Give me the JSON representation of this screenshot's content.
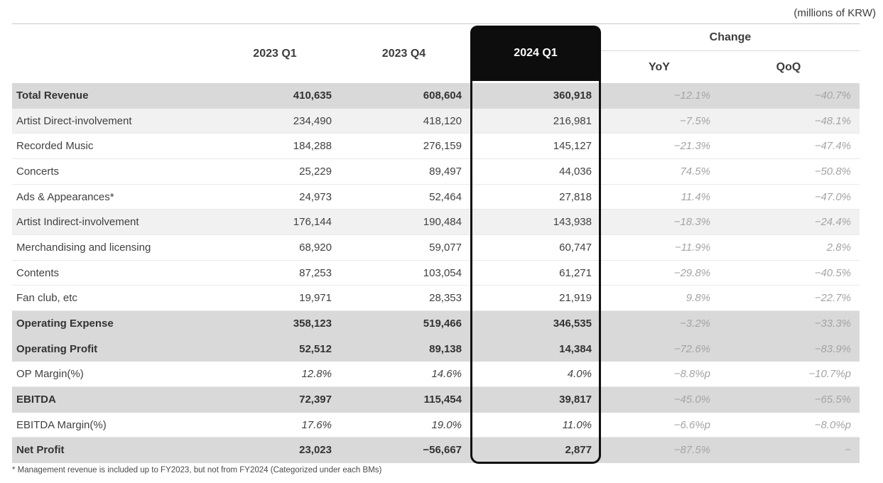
{
  "unit_note": "(millions of KRW)",
  "colors": {
    "highlight_box": "#0d0d0d",
    "band_dark": "#d9d9d9",
    "band_light": "#f1f1f1",
    "change_text": "#a4a4a4",
    "rule": "#c9c9c9"
  },
  "header": {
    "col_2023q1": "2023 Q1",
    "col_2023q4": "2023 Q4",
    "col_2024q1": "2024 Q1",
    "change_group": "Change",
    "col_yoy": "YoY",
    "col_qoq": "QoQ"
  },
  "rows": [
    {
      "label": "Total Revenue",
      "q1_2023": "410,635",
      "q4_2023": "608,604",
      "q1_2024": "360,918",
      "yoy": "−12.1%",
      "qoq": "−40.7%",
      "style": "total"
    },
    {
      "label": "Artist Direct-involvement",
      "q1_2023": "234,490",
      "q4_2023": "418,120",
      "q1_2024": "216,981",
      "yoy": "−7.5%",
      "qoq": "−48.1%",
      "style": "subhead"
    },
    {
      "label": "Recorded Music",
      "q1_2023": "184,288",
      "q4_2023": "276,159",
      "q1_2024": "145,127",
      "yoy": "−21.3%",
      "qoq": "−47.4%",
      "style": "sub"
    },
    {
      "label": "Concerts",
      "q1_2023": "25,229",
      "q4_2023": "89,497",
      "q1_2024": "44,036",
      "yoy": "74.5%",
      "qoq": "−50.8%",
      "style": "sub"
    },
    {
      "label": "Ads & Appearances*",
      "q1_2023": "24,973",
      "q4_2023": "52,464",
      "q1_2024": "27,818",
      "yoy": "11.4%",
      "qoq": "−47.0%",
      "style": "sub"
    },
    {
      "label": "Artist Indirect-involvement",
      "q1_2023": "176,144",
      "q4_2023": "190,484",
      "q1_2024": "143,938",
      "yoy": "−18.3%",
      "qoq": "−24.4%",
      "style": "subhead"
    },
    {
      "label": "Merchandising and licensing",
      "q1_2023": "68,920",
      "q4_2023": "59,077",
      "q1_2024": "60,747",
      "yoy": "−11.9%",
      "qoq": "2.8%",
      "style": "sub"
    },
    {
      "label": "Contents",
      "q1_2023": "87,253",
      "q4_2023": "103,054",
      "q1_2024": "61,271",
      "yoy": "−29.8%",
      "qoq": "−40.5%",
      "style": "sub"
    },
    {
      "label": "Fan club, etc",
      "q1_2023": "19,971",
      "q4_2023": "28,353",
      "q1_2024": "21,919",
      "yoy": "9.8%",
      "qoq": "−22.7%",
      "style": "sub"
    },
    {
      "label": "Operating Expense",
      "q1_2023": "358,123",
      "q4_2023": "519,466",
      "q1_2024": "346,535",
      "yoy": "−3.2%",
      "qoq": "−33.3%",
      "style": "total"
    },
    {
      "label": "Operating Profit",
      "q1_2023": "52,512",
      "q4_2023": "89,138",
      "q1_2024": "14,384",
      "yoy": "−72.6%",
      "qoq": "−83.9%",
      "style": "total"
    },
    {
      "label": "OP Margin(%)",
      "q1_2023": "12.8%",
      "q4_2023": "14.6%",
      "q1_2024": "4.0%",
      "yoy": "−8.8%p",
      "qoq": "−10.7%p",
      "style": "margin"
    },
    {
      "label": "EBITDA",
      "q1_2023": "72,397",
      "q4_2023": "115,454",
      "q1_2024": "39,817",
      "yoy": "−45.0%",
      "qoq": "−65.5%",
      "style": "total"
    },
    {
      "label": "EBITDA Margin(%)",
      "q1_2023": "17.6%",
      "q4_2023": "19.0%",
      "q1_2024": "11.0%",
      "yoy": "−6.6%p",
      "qoq": "−8.0%p",
      "style": "margin"
    },
    {
      "label": "Net Profit",
      "q1_2023": "23,023",
      "q4_2023": "−56,667",
      "q1_2024": "2,877",
      "yoy": "−87.5%",
      "qoq": "−",
      "style": "total"
    }
  ],
  "footnote": "* Management revenue is included up to FY2023, but not from FY2024 (Categorized under each BMs)"
}
